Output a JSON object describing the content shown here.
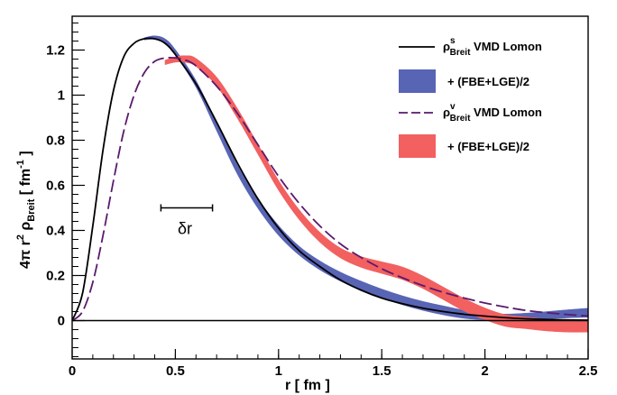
{
  "chart_data": {
    "type": "line",
    "xlabel": "r  [ fm ]",
    "ylabel": "4π r² ρBreit  [ fm⁻¹ ]",
    "xlim": [
      0,
      2.5
    ],
    "ylim": [
      -0.17,
      1.35
    ],
    "x_ticks": [
      {
        "value": 0,
        "label": "0"
      },
      {
        "value": 0.5,
        "label": "0.5"
      },
      {
        "value": 1,
        "label": "1"
      },
      {
        "value": 1.5,
        "label": "1.5"
      },
      {
        "value": 2,
        "label": "2"
      },
      {
        "value": 2.5,
        "label": "2.5"
      }
    ],
    "y_ticks": [
      {
        "value": 0,
        "label": "0"
      },
      {
        "value": 0.2,
        "label": "0.2"
      },
      {
        "value": 0.4,
        "label": "0.4"
      },
      {
        "value": 0.6,
        "label": "0.6"
      },
      {
        "value": 0.8,
        "label": "0.8"
      },
      {
        "value": 1.0,
        "label": "1"
      },
      {
        "value": 1.2,
        "label": "1.2"
      }
    ],
    "grid": false,
    "legend_position": "top-right",
    "series": [
      {
        "key": "scalar_vmd",
        "style": "solid-line",
        "color": "#000000",
        "legend": {
          "sym": "ρ",
          "sup": "s",
          "sub": "Breit",
          "text": "VMD Lomon"
        },
        "x": [
          0,
          0.05,
          0.1,
          0.15,
          0.2,
          0.25,
          0.3,
          0.35,
          0.4,
          0.45,
          0.5,
          0.6,
          0.7,
          0.8,
          0.9,
          1.0,
          1.1,
          1.2,
          1.3,
          1.4,
          1.5,
          1.6,
          1.7,
          1.8,
          1.9,
          2.0,
          2.1,
          2.2,
          2.3,
          2.4,
          2.5
        ],
        "y": [
          0,
          0.12,
          0.42,
          0.76,
          1.02,
          1.17,
          1.23,
          1.25,
          1.25,
          1.23,
          1.18,
          1.05,
          0.88,
          0.7,
          0.54,
          0.41,
          0.31,
          0.24,
          0.18,
          0.135,
          0.1,
          0.075,
          0.055,
          0.04,
          0.028,
          0.02,
          0.013,
          0.008,
          0.005,
          0.003,
          0.002
        ]
      },
      {
        "key": "scalar_band",
        "style": "band",
        "color": "#5864b4",
        "legend": {
          "text": "+ (FBE+LGE)/2"
        },
        "x": [
          0.35,
          0.4,
          0.45,
          0.5,
          0.6,
          0.7,
          0.8,
          0.9,
          1.0,
          1.1,
          1.2,
          1.3,
          1.4,
          1.5,
          1.6,
          1.7,
          1.8,
          1.9,
          2.0,
          2.1,
          2.2,
          2.3,
          2.4,
          2.5
        ],
        "y": [
          1.25,
          1.255,
          1.24,
          1.19,
          1.05,
          0.86,
          0.67,
          0.52,
          0.4,
          0.31,
          0.245,
          0.195,
          0.155,
          0.12,
          0.09,
          0.065,
          0.045,
          0.028,
          0.018,
          0.014,
          0.018,
          0.024,
          0.03,
          0.035
        ],
        "half_width": [
          0.005,
          0.008,
          0.01,
          0.012,
          0.015,
          0.018,
          0.02,
          0.022,
          0.022,
          0.02,
          0.02,
          0.02,
          0.02,
          0.02,
          0.02,
          0.02,
          0.02,
          0.018,
          0.015,
          0.015,
          0.015,
          0.016,
          0.018,
          0.02
        ]
      },
      {
        "key": "vector_band",
        "style": "band",
        "color": "#f26060",
        "legend": {
          "text": "+ (FBE+LGE)/2"
        },
        "x": [
          0.45,
          0.5,
          0.55,
          0.6,
          0.7,
          0.8,
          0.9,
          1.0,
          1.1,
          1.2,
          1.3,
          1.4,
          1.5,
          1.6,
          1.7,
          1.8,
          1.9,
          2.0,
          2.1,
          2.2,
          2.3,
          2.4,
          2.5
        ],
        "y": [
          1.145,
          1.158,
          1.16,
          1.145,
          1.06,
          0.92,
          0.76,
          0.6,
          0.47,
          0.37,
          0.3,
          0.26,
          0.235,
          0.21,
          0.17,
          0.12,
          0.07,
          0.03,
          0.0,
          -0.01,
          -0.02,
          -0.025,
          -0.025
        ],
        "half_width": [
          0.01,
          0.012,
          0.015,
          0.018,
          0.02,
          0.022,
          0.022,
          0.022,
          0.022,
          0.022,
          0.022,
          0.024,
          0.026,
          0.028,
          0.028,
          0.028,
          0.028,
          0.026,
          0.026,
          0.026,
          0.026,
          0.026,
          0.026
        ]
      },
      {
        "key": "vector_vmd",
        "style": "dashed-line",
        "color": "#5a1a6e",
        "legend": {
          "sym": "ρ",
          "sup": "v",
          "sub": "Breit",
          "text": "VMD Lomon"
        },
        "x": [
          0,
          0.05,
          0.1,
          0.15,
          0.2,
          0.25,
          0.3,
          0.35,
          0.4,
          0.45,
          0.5,
          0.55,
          0.6,
          0.7,
          0.8,
          0.9,
          1.0,
          1.1,
          1.2,
          1.3,
          1.4,
          1.5,
          1.6,
          1.7,
          1.8,
          1.9,
          2.0,
          2.1,
          2.2,
          2.3,
          2.4,
          2.5
        ],
        "y": [
          0,
          0.04,
          0.17,
          0.38,
          0.62,
          0.84,
          1.0,
          1.1,
          1.15,
          1.165,
          1.165,
          1.155,
          1.13,
          1.04,
          0.92,
          0.78,
          0.64,
          0.52,
          0.42,
          0.34,
          0.28,
          0.23,
          0.19,
          0.155,
          0.125,
          0.1,
          0.078,
          0.06,
          0.045,
          0.035,
          0.027,
          0.02
        ]
      }
    ],
    "annotations": [
      {
        "key": "delta_r",
        "label": "δr",
        "x_start": 0.43,
        "x_end": 0.68,
        "y": 0.5
      }
    ]
  }
}
